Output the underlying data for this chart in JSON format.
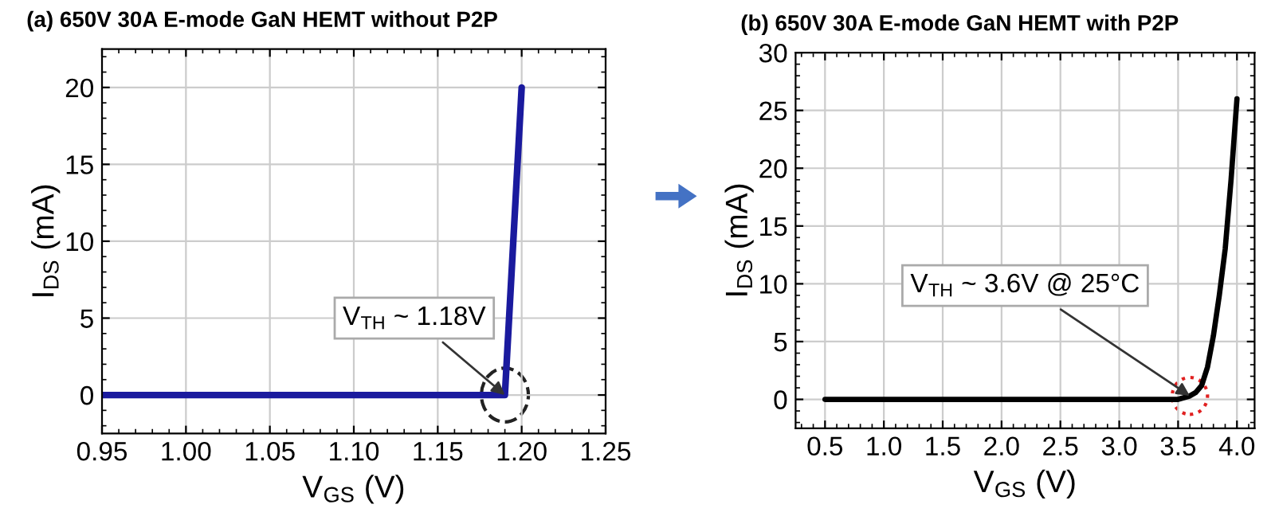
{
  "chart_data": [
    {
      "type": "line",
      "title": "(a) 650V 30A E-mode GaN HEMT without P2P",
      "xlabel": "V$_{GS}$ (V)",
      "ylabel": "I$_{DS}$ (mA)",
      "series": [
        {
          "color": "#1a1a9e",
          "x": [
            0.95,
            1.19,
            1.2
          ],
          "values": [
            0,
            0,
            20
          ]
        }
      ],
      "xlim": [
        0.95,
        1.25
      ],
      "xticks": [
        {
          "value": 0.95,
          "label": "0.95"
        },
        {
          "value": 1.0,
          "label": "1.00"
        },
        {
          "value": 1.05,
          "label": "1.05"
        },
        {
          "value": 1.1,
          "label": "1.10"
        },
        {
          "value": 1.15,
          "label": "1.15"
        },
        {
          "value": 1.2,
          "label": "1.20"
        },
        {
          "value": 1.25,
          "label": "1.25"
        }
      ],
      "ylim": [
        -2.5,
        22.5
      ],
      "yticks": [
        0,
        5,
        10,
        15,
        20
      ],
      "grid": true,
      "marker": "none",
      "line_style": "solid",
      "annotations": [
        {
          "text": "V$_{TH}$ ~ 1.18V",
          "x": 1.19,
          "y": 0
        }
      ]
    },
    {
      "type": "line",
      "title": "(b) 650V 30A E-mode GaN HEMT with P2P",
      "xlabel": "V$_{GS}$ (V)",
      "ylabel": "I$_{DS}$ (mA)",
      "series": [
        {
          "color": "#000000",
          "x": [
            0.5,
            1.0,
            2.0,
            3.0,
            3.4,
            3.5,
            3.6,
            3.65,
            3.7,
            3.75,
            3.8,
            3.85,
            3.9,
            3.95,
            4.0
          ],
          "values": [
            0,
            0,
            0,
            0,
            0,
            0,
            0.3,
            0.6,
            1.2,
            2.8,
            5.5,
            9,
            13,
            19,
            26
          ]
        }
      ],
      "xlim": [
        0.25,
        4.15
      ],
      "xticks": [
        0.5,
        {
          "value": 1,
          "label": "1.0"
        },
        1.5,
        {
          "value": 2,
          "label": "2.0"
        },
        2.5,
        {
          "value": 3,
          "label": "3.0"
        },
        3.5,
        {
          "value": 4,
          "label": "4.0"
        }
      ],
      "ylim": [
        -2.5,
        30
      ],
      "yticks": [
        0,
        5,
        10,
        15,
        20,
        25,
        30
      ],
      "grid": true,
      "marker": "none",
      "line_style": "solid",
      "annotations": [
        {
          "text": "V$_{TH}$ ~ 3.6V @ 25°C",
          "x": 3.6,
          "y": 0.3
        }
      ]
    }
  ]
}
